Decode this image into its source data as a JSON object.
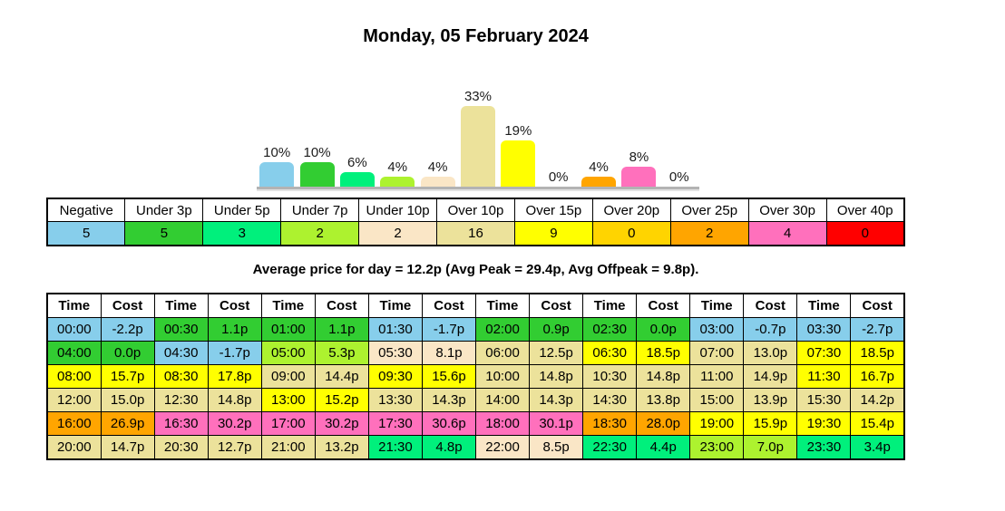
{
  "title": "Monday, 05 February 2024",
  "summary": "Average price for day = 12.2p (Avg Peak = 29.4p, Avg Offpeak = 9.8p).",
  "chart_data": {
    "type": "bar",
    "title": "Monday, 05 February 2024",
    "xlabel": "",
    "ylabel": "",
    "grid": false,
    "legend": "none",
    "ylim": [
      0,
      35
    ],
    "unit": "%",
    "categories": [
      "Negative",
      "Under 3p",
      "Under 5p",
      "Under 7p",
      "Under 10p",
      "Over 10p",
      "Over 15p",
      "Over 20p",
      "Over 25p",
      "Over 30p",
      "Over 40p"
    ],
    "values": [
      10,
      10,
      6,
      4,
      4,
      33,
      19,
      0,
      4,
      8,
      0
    ],
    "value_labels": [
      "10%",
      "10%",
      "6%",
      "4%",
      "4%",
      "33%",
      "19%",
      "0%",
      "4%",
      "8%",
      "0%"
    ],
    "counts": [
      5,
      5,
      3,
      2,
      2,
      16,
      9,
      0,
      2,
      4,
      0
    ],
    "colors": [
      "#87CEEB",
      "#32CD32",
      "#00F07C",
      "#ADF22F",
      "#FAE6C6",
      "#ECE29B",
      "#FFFF00",
      "#FFD400",
      "#FFA500",
      "#FF70BC",
      "#FF0000"
    ]
  },
  "price_table": {
    "column_headers": [
      "Time",
      "Cost"
    ],
    "pairs_per_row": 8,
    "rows": [
      [
        {
          "time": "00:00",
          "cost": "-2.2p",
          "band": 0
        },
        {
          "time": "00:30",
          "cost": "1.1p",
          "band": 1
        },
        {
          "time": "01:00",
          "cost": "1.1p",
          "band": 1
        },
        {
          "time": "01:30",
          "cost": "-1.7p",
          "band": 0
        },
        {
          "time": "02:00",
          "cost": "0.9p",
          "band": 1
        },
        {
          "time": "02:30",
          "cost": "0.0p",
          "band": 1
        },
        {
          "time": "03:00",
          "cost": "-0.7p",
          "band": 0
        },
        {
          "time": "03:30",
          "cost": "-2.7p",
          "band": 0
        }
      ],
      [
        {
          "time": "04:00",
          "cost": "0.0p",
          "band": 1
        },
        {
          "time": "04:30",
          "cost": "-1.7p",
          "band": 0
        },
        {
          "time": "05:00",
          "cost": "5.3p",
          "band": 3
        },
        {
          "time": "05:30",
          "cost": "8.1p",
          "band": 4
        },
        {
          "time": "06:00",
          "cost": "12.5p",
          "band": 5
        },
        {
          "time": "06:30",
          "cost": "18.5p",
          "band": 6
        },
        {
          "time": "07:00",
          "cost": "13.0p",
          "band": 5
        },
        {
          "time": "07:30",
          "cost": "18.5p",
          "band": 6
        }
      ],
      [
        {
          "time": "08:00",
          "cost": "15.7p",
          "band": 6
        },
        {
          "time": "08:30",
          "cost": "17.8p",
          "band": 6
        },
        {
          "time": "09:00",
          "cost": "14.4p",
          "band": 5
        },
        {
          "time": "09:30",
          "cost": "15.6p",
          "band": 6
        },
        {
          "time": "10:00",
          "cost": "14.8p",
          "band": 5
        },
        {
          "time": "10:30",
          "cost": "14.8p",
          "band": 5
        },
        {
          "time": "11:00",
          "cost": "14.9p",
          "band": 5
        },
        {
          "time": "11:30",
          "cost": "16.7p",
          "band": 6
        }
      ],
      [
        {
          "time": "12:00",
          "cost": "15.0p",
          "band": 5
        },
        {
          "time": "12:30",
          "cost": "14.8p",
          "band": 5
        },
        {
          "time": "13:00",
          "cost": "15.2p",
          "band": 6
        },
        {
          "time": "13:30",
          "cost": "14.3p",
          "band": 5
        },
        {
          "time": "14:00",
          "cost": "14.3p",
          "band": 5
        },
        {
          "time": "14:30",
          "cost": "13.8p",
          "band": 5
        },
        {
          "time": "15:00",
          "cost": "13.9p",
          "band": 5
        },
        {
          "time": "15:30",
          "cost": "14.2p",
          "band": 5
        }
      ],
      [
        {
          "time": "16:00",
          "cost": "26.9p",
          "band": 8
        },
        {
          "time": "16:30",
          "cost": "30.2p",
          "band": 9
        },
        {
          "time": "17:00",
          "cost": "30.2p",
          "band": 9
        },
        {
          "time": "17:30",
          "cost": "30.6p",
          "band": 9
        },
        {
          "time": "18:00",
          "cost": "30.1p",
          "band": 9
        },
        {
          "time": "18:30",
          "cost": "28.0p",
          "band": 8
        },
        {
          "time": "19:00",
          "cost": "15.9p",
          "band": 6
        },
        {
          "time": "19:30",
          "cost": "15.4p",
          "band": 6
        }
      ],
      [
        {
          "time": "20:00",
          "cost": "14.7p",
          "band": 5
        },
        {
          "time": "20:30",
          "cost": "12.7p",
          "band": 5
        },
        {
          "time": "21:00",
          "cost": "13.2p",
          "band": 5
        },
        {
          "time": "21:30",
          "cost": "4.8p",
          "band": 2
        },
        {
          "time": "22:00",
          "cost": "8.5p",
          "band": 4
        },
        {
          "time": "22:30",
          "cost": "4.4p",
          "band": 2
        },
        {
          "time": "23:00",
          "cost": "7.0p",
          "band": 3
        },
        {
          "time": "23:30",
          "cost": "3.4p",
          "band": 2
        }
      ]
    ]
  }
}
